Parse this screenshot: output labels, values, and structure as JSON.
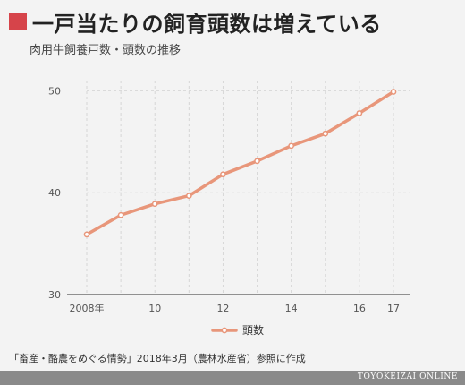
{
  "header": {
    "title": "一戸当たりの飼育頭数は増えている",
    "subtitle": "肉用牛飼養戸数・頭数の推移"
  },
  "chart_data": {
    "type": "line",
    "x": [
      2008,
      2009,
      2010,
      2011,
      2012,
      2013,
      2014,
      2015,
      2016,
      2017
    ],
    "x_tick_values": [
      2008,
      2010,
      2012,
      2014,
      2016,
      2017
    ],
    "x_tick_labels": [
      "2008年",
      "10",
      "12",
      "14",
      "16",
      "17"
    ],
    "y_tick_values": [
      30,
      40,
      50
    ],
    "ylim": [
      30,
      51
    ],
    "xlim": [
      2008,
      2017
    ],
    "grid": true,
    "series": [
      {
        "name": "頭数",
        "color": "#e8967a",
        "values": [
          35.9,
          37.8,
          38.9,
          39.7,
          41.8,
          43.1,
          44.6,
          45.8,
          47.8,
          49.9
        ]
      }
    ],
    "legend": "bottom-center"
  },
  "footer": {
    "source": "「畜産・酪農をめぐる情勢」2018年3月（農林水産省）参照に作成",
    "brand": "TOYOKEIZAI ONLINE"
  }
}
